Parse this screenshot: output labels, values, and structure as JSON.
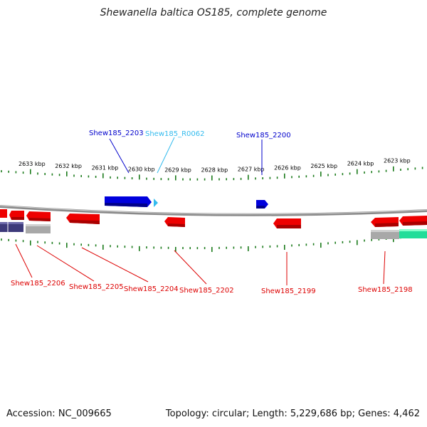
{
  "title": "Shewanella baltica OS185, complete genome",
  "footer": {
    "accession": "Accession: NC_009665",
    "summary": "Topology: circular; Length: 5,229,686 bp; Genes: 4,462"
  },
  "colors": {
    "forward_gene": "#0000dd",
    "rna": "#33bbee",
    "reverse_gene": "#ee0000",
    "purple_feature": "#3d3a7a",
    "gray_feature": "#a8a8a8",
    "green_feature": "#22dd99",
    "ticks": "#1a7a1a",
    "backbone": "#888888"
  },
  "scale": {
    "kbp_labels": [
      "2633 kbp",
      "2632 kbp",
      "2631 kbp",
      "2630 kbp",
      "2629 kbp",
      "2628 kbp",
      "2627 kbp",
      "2626 kbp",
      "2625 kbp",
      "2624 kbp",
      "2623 kbp"
    ]
  },
  "genes_forward": [
    {
      "name": "Shew185_2203",
      "type": "gene"
    },
    {
      "name": "Shew185_R0062",
      "type": "rna"
    },
    {
      "name": "Shew185_2200",
      "type": "gene"
    }
  ],
  "genes_reverse": [
    {
      "name": "Shew185_2206"
    },
    {
      "name": "Shew185_2205"
    },
    {
      "name": "Shew185_2204"
    },
    {
      "name": "Shew185_2202"
    },
    {
      "name": "Shew185_2199"
    },
    {
      "name": "Shew185_2198"
    }
  ]
}
